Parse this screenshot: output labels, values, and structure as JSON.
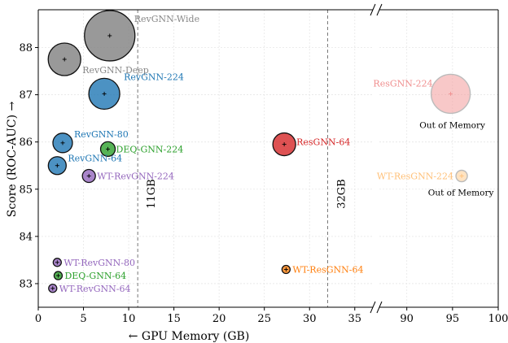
{
  "chart_data": {
    "type": "scatter",
    "xlabel": "← GPU Memory (GB)",
    "ylabel": "Score (ROC-AUC) →",
    "ylim": [
      82.5,
      88.8
    ],
    "yticks": [
      83,
      84,
      85,
      86,
      87,
      88
    ],
    "left_panel": {
      "xlim": [
        0,
        37
      ],
      "xticks": [
        0,
        5,
        10,
        15,
        20,
        25,
        30,
        35
      ]
    },
    "right_panel": {
      "xlim": [
        87,
        100
      ],
      "xticks": [
        90,
        95,
        100
      ]
    },
    "grid": true,
    "reference_lines": [
      {
        "x": 11,
        "label": "11GB"
      },
      {
        "x": 32,
        "label": "32GB"
      }
    ],
    "points": [
      {
        "label": "RevGNN-Wide",
        "x": 7.9,
        "y": 88.25,
        "size": 62,
        "color": "#808080",
        "text_color": "#888888",
        "alpha": 0.8
      },
      {
        "label": "RevGNN-Deep",
        "x": 2.9,
        "y": 87.75,
        "size": 40,
        "color": "#808080",
        "text_color": "#888888",
        "alpha": 0.8
      },
      {
        "label": "RevGNN-224",
        "x": 7.3,
        "y": 87.02,
        "size": 38,
        "color": "#1f77b4",
        "text_color": "#1f77b4",
        "alpha": 0.8
      },
      {
        "label": "RevGNN-80",
        "x": 2.7,
        "y": 85.98,
        "size": 24,
        "color": "#1f77b4",
        "text_color": "#1f77b4",
        "alpha": 0.8
      },
      {
        "label": "RevGNN-64",
        "x": 2.1,
        "y": 85.5,
        "size": 22,
        "color": "#1f77b4",
        "text_color": "#1f77b4",
        "alpha": 0.8
      },
      {
        "label": "DEQ-GNN-224",
        "x": 7.7,
        "y": 85.85,
        "size": 18,
        "color": "#2ca02c",
        "text_color": "#2ca02c",
        "alpha": 0.8
      },
      {
        "label": "WT-RevGNN-224",
        "x": 5.6,
        "y": 85.28,
        "size": 16,
        "color": "#9467bd",
        "text_color": "#9467bd",
        "alpha": 0.8
      },
      {
        "label": "ResGNN-64",
        "x": 27.2,
        "y": 85.95,
        "size": 28,
        "color": "#d62728",
        "text_color": "#d62728",
        "alpha": 0.8
      },
      {
        "label": "WT-RevGNN-80",
        "x": 2.1,
        "y": 83.45,
        "size": 10,
        "color": "#9467bd",
        "text_color": "#9467bd",
        "alpha": 0.8
      },
      {
        "label": "DEQ-GNN-64",
        "x": 2.2,
        "y": 83.17,
        "size": 10,
        "color": "#2ca02c",
        "text_color": "#2ca02c",
        "alpha": 0.8
      },
      {
        "label": "WT-RevGNN-64",
        "x": 1.6,
        "y": 82.9,
        "size": 10,
        "color": "#9467bd",
        "text_color": "#9467bd",
        "alpha": 0.8
      },
      {
        "label": "WT-ResGNN-64",
        "x": 27.4,
        "y": 83.3,
        "size": 10,
        "color": "#ff7f0e",
        "text_color": "#ff7f0e",
        "alpha": 0.8
      },
      {
        "label": "ResGNN-224",
        "x": 94.8,
        "y": 87.02,
        "size": 48,
        "color": "#f4a3a3",
        "text_color": "#f08f8f",
        "alpha": 0.6,
        "note": "Out of Memory"
      },
      {
        "label": "WT-ResGNN-224",
        "x": 96.0,
        "y": 85.28,
        "size": 14,
        "color": "#ffd09a",
        "text_color": "#ffc078",
        "alpha": 0.6,
        "note": "Out of Memory"
      }
    ]
  }
}
